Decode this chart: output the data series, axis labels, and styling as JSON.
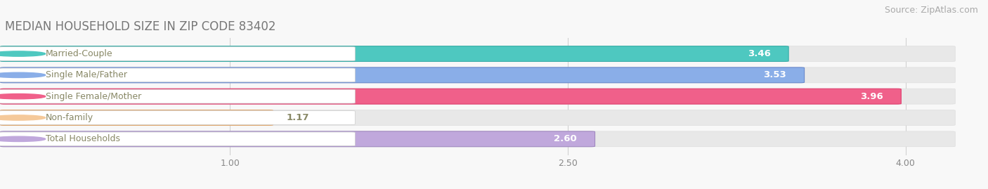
{
  "title": "MEDIAN HOUSEHOLD SIZE IN ZIP CODE 83402",
  "source": "Source: ZipAtlas.com",
  "categories": [
    "Married-Couple",
    "Single Male/Father",
    "Single Female/Mother",
    "Non-family",
    "Total Households"
  ],
  "values": [
    3.46,
    3.53,
    3.96,
    1.17,
    2.6
  ],
  "bar_colors": [
    "#4EC8C0",
    "#8AAEE8",
    "#F0608A",
    "#F5C99A",
    "#C0A8DC"
  ],
  "bar_edge_colors": [
    "#3AADA8",
    "#6888CC",
    "#E04070",
    "#E0A870",
    "#A088C0"
  ],
  "xlim_min": 0.0,
  "xlim_max": 4.3,
  "bar_xlim_max": 4.2,
  "xticks": [
    1.0,
    2.5,
    4.0
  ],
  "label_color": "#888866",
  "value_color": "#ffffff",
  "background_color": "#f8f8f8",
  "bar_background": "#eeeeee",
  "title_fontsize": 12,
  "source_fontsize": 9,
  "bar_height": 0.68,
  "figsize": [
    14.06,
    2.69
  ],
  "dpi": 100
}
